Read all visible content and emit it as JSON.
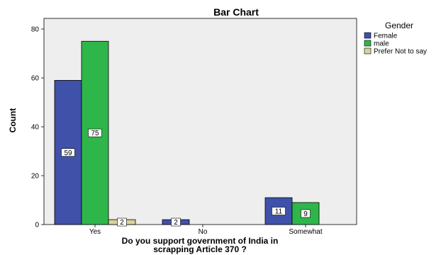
{
  "chart_data": {
    "type": "bar",
    "title": "Bar Chart",
    "xlabel": "Do you support  government  of India in scrapping  Article 370 ?",
    "ylabel": "Count",
    "categories": [
      "Yes",
      "No",
      "Somewhat"
    ],
    "series": [
      {
        "name": "Female",
        "values": [
          59,
          2,
          11
        ],
        "color": "#3f51a8"
      },
      {
        "name": "male",
        "values": [
          75,
          0,
          9
        ],
        "color": "#2fb64a"
      },
      {
        "name": "Prefer Not to say",
        "values": [
          2,
          0,
          0
        ],
        "color": "#d8d39a"
      }
    ],
    "ylim": [
      0,
      80
    ],
    "yticks": [
      0,
      20,
      40,
      60,
      80
    ],
    "legend_title": "Gender",
    "legend_position": "right",
    "grid": false,
    "plot_background": "#eeeeee"
  }
}
